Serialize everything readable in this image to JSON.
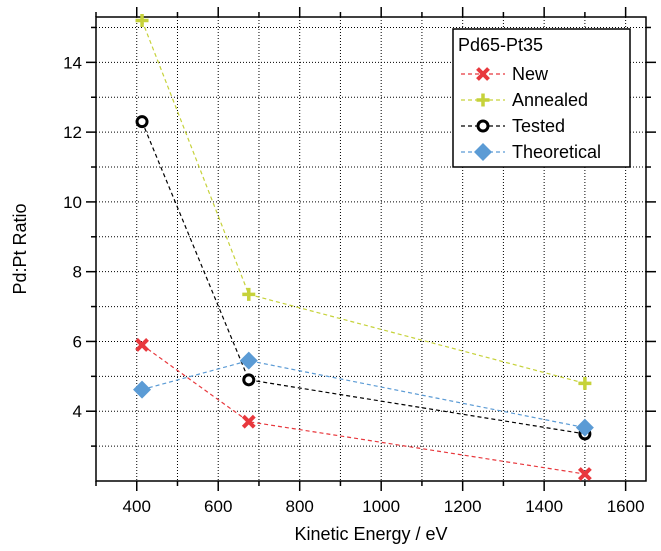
{
  "chart_data": {
    "type": "line",
    "xlabel": "Kinetic Energy / eV",
    "ylabel": "Pd:Pt Ratio",
    "xlim": [
      300,
      1650
    ],
    "ylim": [
      2,
      15.3
    ],
    "x_ticks": [
      400,
      600,
      800,
      1000,
      1200,
      1400,
      1600
    ],
    "y_ticks": [
      4,
      6,
      8,
      10,
      12,
      14
    ],
    "grid": true,
    "grid_style": "dotted",
    "legend_position": "top-right",
    "legend_title": "Pd65-Pt35",
    "line_style": "dashed",
    "series": [
      {
        "name": "New",
        "marker": "x",
        "color": "#e8383d",
        "x": [
          413,
          675,
          1500
        ],
        "y": [
          5.9,
          3.7,
          2.2
        ]
      },
      {
        "name": "Annealed",
        "marker": "plus",
        "color": "#c6d23a",
        "x": [
          413,
          675,
          1500
        ],
        "y": [
          15.2,
          7.35,
          4.8
        ]
      },
      {
        "name": "Tested",
        "marker": "circle",
        "color": "#000000",
        "x": [
          413,
          675,
          1500
        ],
        "y": [
          12.3,
          4.9,
          3.35
        ]
      },
      {
        "name": "Theoretical",
        "marker": "diamond",
        "color": "#5b9bd5",
        "x": [
          413,
          675,
          1500
        ],
        "y": [
          4.62,
          5.45,
          3.53
        ]
      }
    ]
  }
}
